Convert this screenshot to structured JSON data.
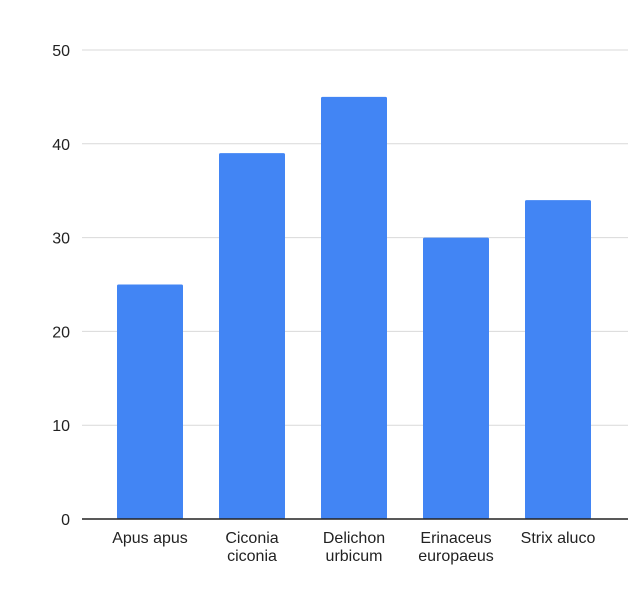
{
  "chart_data": {
    "type": "bar",
    "categories": [
      [
        "Apus apus"
      ],
      [
        "Ciconia",
        "ciconia"
      ],
      [
        "Delichon",
        "urbicum"
      ],
      [
        "Erinaceus",
        "europaeus"
      ],
      [
        "Strix aluco"
      ]
    ],
    "values": [
      25,
      39,
      45,
      30,
      34
    ],
    "yticks": [
      "0",
      "10",
      "20",
      "30",
      "40",
      "50"
    ],
    "ylim": [
      0,
      50
    ],
    "grid": true,
    "legend": "none",
    "bar_color": "#4285f4",
    "grid_color": "#d9d9d9",
    "axis_color": "#222222"
  }
}
